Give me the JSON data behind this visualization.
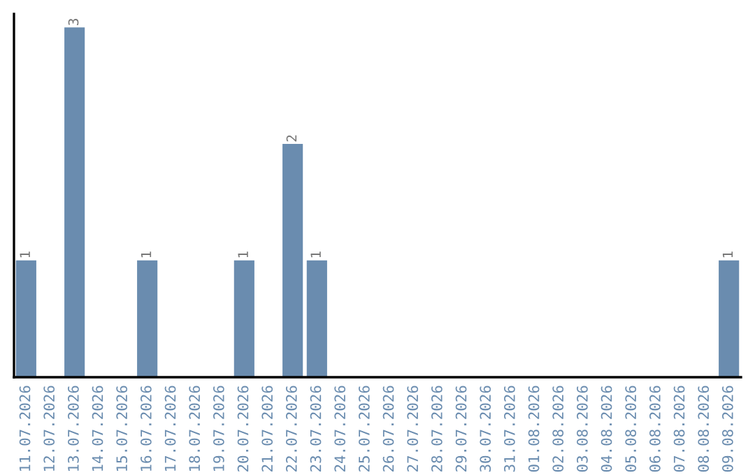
{
  "chart_data": {
    "type": "bar",
    "categories": [
      "11.07.2026",
      "12.07.2026",
      "13.07.2026",
      "14.07.2026",
      "15.07.2026",
      "16.07.2026",
      "17.07.2026",
      "18.07.2026",
      "19.07.2026",
      "20.07.2026",
      "21.07.2026",
      "22.07.2026",
      "23.07.2026",
      "24.07.2026",
      "25.07.2026",
      "26.07.2026",
      "27.07.2026",
      "28.07.2026",
      "29.07.2026",
      "30.07.2026",
      "31.07.2026",
      "01.08.2026",
      "02.08.2026",
      "03.08.2026",
      "04.08.2026",
      "05.08.2026",
      "06.08.2026",
      "07.08.2026",
      "08.08.2026",
      "09.08.2026"
    ],
    "values": [
      1,
      0,
      3,
      0,
      0,
      1,
      0,
      0,
      0,
      1,
      0,
      2,
      1,
      0,
      0,
      0,
      0,
      0,
      0,
      0,
      0,
      0,
      0,
      0,
      0,
      0,
      0,
      0,
      0,
      1
    ],
    "value_labels": [
      "1",
      null,
      "3",
      null,
      null,
      "1",
      null,
      null,
      null,
      "1",
      null,
      "2",
      "1",
      null,
      null,
      null,
      null,
      null,
      null,
      null,
      null,
      null,
      null,
      null,
      null,
      null,
      null,
      null,
      null,
      "1"
    ],
    "color": "#6a8caf",
    "tick_labels": "x",
    "grid": false,
    "legend": false
  }
}
